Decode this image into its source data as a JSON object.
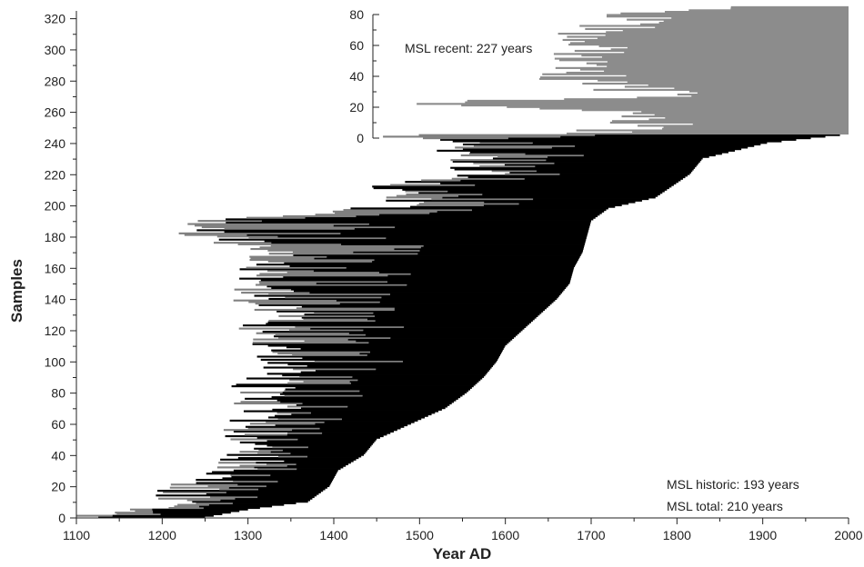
{
  "chart_data": [
    {
      "type": "bar",
      "subtype": "horizontal-range (tree-ring sample spans, stacked by sample index)",
      "xlabel": "Year AD",
      "ylabel": "Samples",
      "xlim": [
        1100,
        2000
      ],
      "ylim": [
        0,
        325
      ],
      "xticks": [
        "1100",
        "1200",
        "1300",
        "1400",
        "1500",
        "1600",
        "1700",
        "1800",
        "1900",
        "2000"
      ],
      "yticks": [
        "0",
        "20",
        "40",
        "60",
        "80",
        "100",
        "120",
        "140",
        "160",
        "180",
        "200",
        "220",
        "240",
        "260",
        "280",
        "300",
        "320"
      ],
      "grid": false,
      "colors": {
        "historic": "#000000",
        "partial": "#808080",
        "recent": "#8c8c8c",
        "background": "#ffffff"
      },
      "series": [
        {
          "key": "historic",
          "samples": "0-245",
          "envelope_start_year": [
            [
              0,
              1100
            ],
            [
              10,
              1215
            ],
            [
              20,
              1235
            ],
            [
              30,
              1300
            ],
            [
              40,
              1305
            ],
            [
              50,
              1315
            ],
            [
              60,
              1300
            ],
            [
              70,
              1330
            ],
            [
              80,
              1305
            ],
            [
              90,
              1340
            ],
            [
              100,
              1345
            ],
            [
              110,
              1340
            ],
            [
              120,
              1325
            ],
            [
              130,
              1340
            ],
            [
              140,
              1320
            ],
            [
              150,
              1325
            ],
            [
              160,
              1330
            ],
            [
              170,
              1335
            ],
            [
              180,
              1265
            ],
            [
              185,
              1250
            ],
            [
              190,
              1240
            ],
            [
              195,
              1370
            ],
            [
              200,
              1495
            ],
            [
              210,
              1455
            ],
            [
              220,
              1575
            ],
            [
              230,
              1565
            ],
            [
              240,
              1550
            ],
            [
              245,
              1465
            ]
          ],
          "envelope_end_year": [
            [
              0,
              1250
            ],
            [
              5,
              1300
            ],
            [
              10,
              1370
            ],
            [
              20,
              1395
            ],
            [
              30,
              1405
            ],
            [
              35,
              1420
            ],
            [
              40,
              1435
            ],
            [
              50,
              1450
            ],
            [
              60,
              1490
            ],
            [
              70,
              1530
            ],
            [
              80,
              1555
            ],
            [
              90,
              1575
            ],
            [
              100,
              1590
            ],
            [
              110,
              1600
            ],
            [
              120,
              1620
            ],
            [
              130,
              1640
            ],
            [
              140,
              1660
            ],
            [
              150,
              1675
            ],
            [
              160,
              1680
            ],
            [
              170,
              1690
            ],
            [
              180,
              1695
            ],
            [
              190,
              1700
            ],
            [
              198,
              1720
            ],
            [
              205,
              1775
            ],
            [
              220,
              1815
            ],
            [
              230,
              1830
            ],
            [
              240,
              1905
            ],
            [
              245,
              1990
            ]
          ]
        },
        {
          "key": "recent",
          "samples": "246-327",
          "envelope_start_year": [
            [
              246,
              1700
            ],
            [
              250,
              1760
            ],
            [
              260,
              1790
            ],
            [
              265,
              1475
            ],
            [
              270,
              1800
            ],
            [
              280,
              1685
            ],
            [
              290,
              1690
            ],
            [
              300,
              1700
            ],
            [
              310,
              1710
            ],
            [
              320,
              1740
            ],
            [
              327,
              1850
            ]
          ],
          "envelope_end_year": [
            [
              246,
              2000
            ],
            [
              327,
              2000
            ]
          ]
        }
      ]
    },
    {
      "type": "axis-inset",
      "ylim": [
        0,
        80
      ],
      "yticks": [
        "0",
        "20",
        "40",
        "60",
        "80"
      ]
    }
  ],
  "annotations": {
    "recent": "MSL recent: 227 years",
    "historic": "MSL historic: 193 years",
    "total": "MSL total: 210 years"
  }
}
